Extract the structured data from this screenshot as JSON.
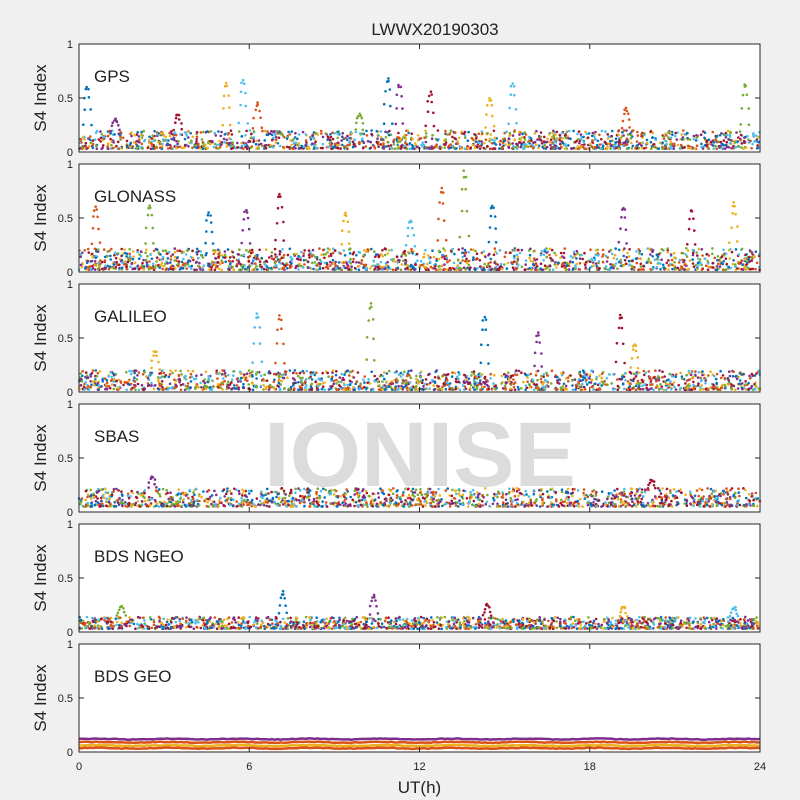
{
  "title": "LWWX20190303",
  "watermark": "IONISE",
  "colors": {
    "background": "#f0f0f0",
    "axes_background": "#ffffff",
    "axis": "#262626",
    "watermark": "#dcdcdc",
    "palette": [
      "#0072BD",
      "#D95319",
      "#EDB120",
      "#7E2F8E",
      "#77AC30",
      "#4DBEEE",
      "#A2142F"
    ]
  },
  "chart_data": [
    {
      "type": "scatter",
      "panel_label": "GPS",
      "ylabel": "S4 Index",
      "ylim": [
        0,
        1
      ],
      "yticks": [
        "0",
        "0.5",
        "1"
      ],
      "xlim": [
        0,
        24
      ],
      "baseline_range": [
        0.03,
        0.2
      ],
      "spikes": [
        {
          "x": 0.3,
          "y": 0.6
        },
        {
          "x": 1.3,
          "y": 0.3
        },
        {
          "x": 3.5,
          "y": 0.35
        },
        {
          "x": 5.2,
          "y": 0.63
        },
        {
          "x": 5.8,
          "y": 0.67
        },
        {
          "x": 6.3,
          "y": 0.45
        },
        {
          "x": 9.9,
          "y": 0.35
        },
        {
          "x": 10.9,
          "y": 0.69
        },
        {
          "x": 11.3,
          "y": 0.63
        },
        {
          "x": 12.4,
          "y": 0.55
        },
        {
          "x": 14.5,
          "y": 0.5
        },
        {
          "x": 15.3,
          "y": 0.63
        },
        {
          "x": 19.3,
          "y": 0.4
        },
        {
          "x": 23.5,
          "y": 0.63
        }
      ]
    },
    {
      "type": "scatter",
      "panel_label": "GLONASS",
      "ylabel": "S4 Index",
      "ylim": [
        0,
        1
      ],
      "yticks": [
        "0",
        "0.5",
        "1"
      ],
      "xlim": [
        0,
        24
      ],
      "baseline_range": [
        0.02,
        0.22
      ],
      "spikes": [
        {
          "x": 0.6,
          "y": 0.6
        },
        {
          "x": 2.5,
          "y": 0.62
        },
        {
          "x": 4.6,
          "y": 0.55
        },
        {
          "x": 5.9,
          "y": 0.58
        },
        {
          "x": 7.1,
          "y": 0.72
        },
        {
          "x": 9.4,
          "y": 0.55
        },
        {
          "x": 11.7,
          "y": 0.48
        },
        {
          "x": 12.8,
          "y": 0.77
        },
        {
          "x": 13.6,
          "y": 0.93
        },
        {
          "x": 14.6,
          "y": 0.62
        },
        {
          "x": 19.2,
          "y": 0.6
        },
        {
          "x": 21.6,
          "y": 0.58
        },
        {
          "x": 23.1,
          "y": 0.64
        }
      ]
    },
    {
      "type": "scatter",
      "panel_label": "GALILEO",
      "ylabel": "S4 Index",
      "ylim": [
        0,
        1
      ],
      "yticks": [
        "0",
        "0.5",
        "1"
      ],
      "xlim": [
        0,
        24
      ],
      "baseline_range": [
        0.02,
        0.2
      ],
      "spikes": [
        {
          "x": 2.7,
          "y": 0.38
        },
        {
          "x": 6.3,
          "y": 0.72
        },
        {
          "x": 7.1,
          "y": 0.7
        },
        {
          "x": 10.3,
          "y": 0.82
        },
        {
          "x": 14.3,
          "y": 0.7
        },
        {
          "x": 16.2,
          "y": 0.54
        },
        {
          "x": 19.1,
          "y": 0.72
        },
        {
          "x": 19.6,
          "y": 0.45
        }
      ]
    },
    {
      "type": "scatter",
      "panel_label": "SBAS",
      "ylabel": "S4 Index",
      "ylim": [
        0,
        1
      ],
      "yticks": [
        "0",
        "0.5",
        "1"
      ],
      "xlim": [
        0,
        24
      ],
      "baseline_range": [
        0.05,
        0.22
      ],
      "spikes": [
        {
          "x": 2.6,
          "y": 0.33
        },
        {
          "x": 20.2,
          "y": 0.3
        }
      ]
    },
    {
      "type": "scatter",
      "panel_label": "BDS NGEO",
      "ylabel": "S4 Index",
      "ylim": [
        0,
        1
      ],
      "yticks": [
        "0",
        "0.5",
        "1"
      ],
      "xlim": [
        0,
        24
      ],
      "baseline_range": [
        0.03,
        0.14
      ],
      "spikes": [
        {
          "x": 1.5,
          "y": 0.24
        },
        {
          "x": 7.2,
          "y": 0.37
        },
        {
          "x": 10.4,
          "y": 0.34
        },
        {
          "x": 14.4,
          "y": 0.25
        },
        {
          "x": 19.2,
          "y": 0.24
        },
        {
          "x": 23.1,
          "y": 0.23
        }
      ]
    },
    {
      "type": "line",
      "panel_label": "BDS GEO",
      "ylabel": "S4 Index",
      "ylim": [
        0,
        1
      ],
      "yticks": [
        "0",
        "0.5",
        "1"
      ],
      "xlim": [
        0,
        24
      ],
      "xticks": [
        "0",
        "6",
        "12",
        "18",
        "24"
      ],
      "xlabel": "UT(h)",
      "series": [
        {
          "values_level": 0.12,
          "color": "#7E2F8E"
        },
        {
          "values_level": 0.09,
          "color": "#D95319"
        },
        {
          "values_level": 0.06,
          "color": "#EDB120"
        },
        {
          "values_level": 0.035,
          "color": "#D95319"
        }
      ]
    }
  ]
}
